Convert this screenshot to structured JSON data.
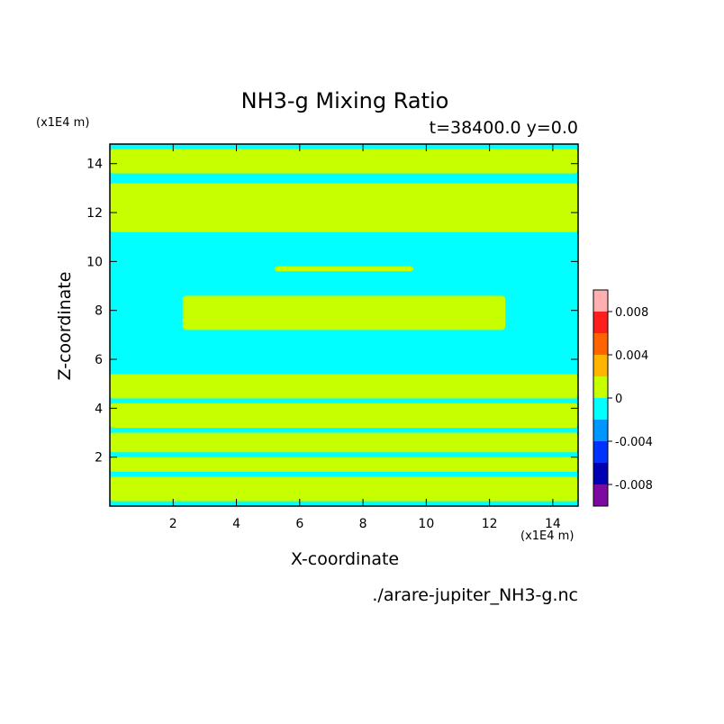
{
  "chart_data": {
    "type": "heatmap",
    "title": "NH3-g Mixing Ratio",
    "subtitle": "t=38400.0 y=0.0",
    "xlabel": "X-coordinate",
    "ylabel": "Z-coordinate",
    "x_unit": "(x1E4 m)",
    "y_unit": "(x1E4 m)",
    "xlim": [
      0,
      14.8
    ],
    "ylim": [
      0,
      14.8
    ],
    "x_ticks": [
      2,
      4,
      6,
      8,
      10,
      12,
      14
    ],
    "y_ticks": [
      2,
      4,
      6,
      8,
      10,
      12,
      14
    ],
    "colorbar": {
      "colors": [
        "#7d0aa0",
        "#0000b4",
        "#0032ff",
        "#0096ff",
        "#00ffff",
        "#c8ff00",
        "#ffb400",
        "#ff6400",
        "#ff1e1e",
        "#ffafaf"
      ],
      "labels": [
        "0.008",
        "0.004",
        "0",
        "-0.004",
        "-0.008"
      ]
    },
    "background_color": "#00ffff",
    "positive_color": "#c8ff00",
    "bands": [
      {
        "z": [
          13.6,
          14.6
        ],
        "x": [
          0,
          14.8
        ]
      },
      {
        "z": [
          11.2,
          13.2
        ],
        "x": [
          0,
          14.8
        ]
      },
      {
        "z": [
          9.6,
          9.8
        ],
        "x": [
          5.2,
          9.6
        ]
      },
      {
        "z": [
          7.2,
          8.6
        ],
        "x": [
          2.3,
          12.5
        ]
      },
      {
        "z": [
          4.4,
          5.4
        ],
        "x": [
          0,
          14.8
        ]
      },
      {
        "z": [
          3.2,
          4.2
        ],
        "x": [
          0,
          14.8
        ]
      },
      {
        "z": [
          2.2,
          3.0
        ],
        "x": [
          0,
          14.8
        ]
      },
      {
        "z": [
          1.4,
          2.0
        ],
        "x": [
          0,
          14.8
        ]
      },
      {
        "z": [
          0.2,
          1.2
        ],
        "x": [
          0,
          14.8
        ]
      }
    ],
    "file_label": "./arare-jupiter_NH3-g.nc"
  }
}
